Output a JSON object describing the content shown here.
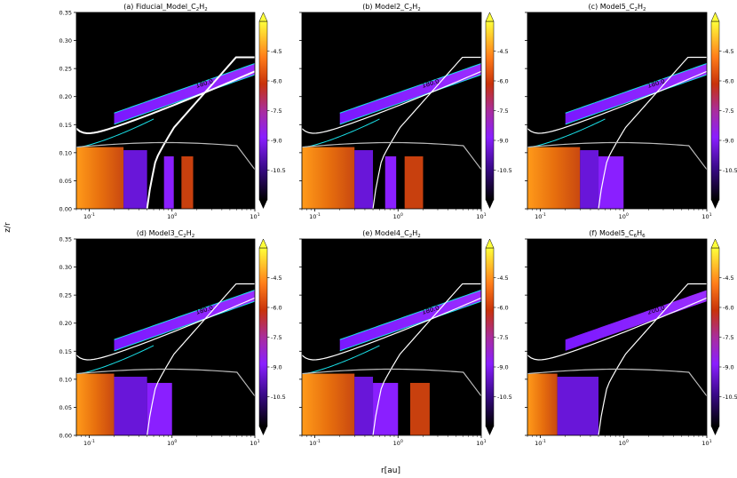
{
  "figure": {
    "ylabel": "z/r",
    "xlabel": "r[au]"
  },
  "chart_data": [
    {
      "type": "heatmap",
      "title_main": "(a) Fiducial_Model_C",
      "title_sub1": "2",
      "title_mid": "H",
      "title_sub2": "2",
      "xscale": "log",
      "xlim": [
        0.07,
        10
      ],
      "ylim": [
        0,
        0.35
      ],
      "yticks": [
        "0.00",
        "0.05",
        "0.10",
        "0.15",
        "0.20",
        "0.25",
        "0.30",
        "0.35"
      ],
      "xticks": [
        "10^-1",
        "10^0",
        "10^1"
      ],
      "colorbar": {
        "ticks": [
          "-4.5",
          "-6.0",
          "-7.5",
          "-9.0",
          "-10.5"
        ],
        "values": [
          -4.5,
          -6.0,
          -7.5,
          -9.0,
          -10.5
        ],
        "range": [
          -12,
          -3
        ]
      },
      "contour_labels": [
        "1000.0",
        "180.0"
      ],
      "inner_band_r_au": [
        0.07,
        0.26
      ],
      "midplane_zr_max": 0.11,
      "outer_patches_r_au": [
        [
          0.8,
          1.05
        ],
        [
          1.3,
          1.8
        ]
      ]
    },
    {
      "type": "heatmap",
      "title_main": "(b) Model2_C",
      "title_sub1": "2",
      "title_mid": "H",
      "title_sub2": "2",
      "xscale": "log",
      "xlim": [
        0.07,
        10
      ],
      "ylim": [
        0,
        0.35
      ],
      "yticks": [],
      "xticks": [
        "10^-1",
        "10^0",
        "10^1"
      ],
      "colorbar": {
        "ticks": [
          "-4.5",
          "-6.0",
          "-7.5",
          "-9.0",
          "-10.5"
        ],
        "values": [
          -4.5,
          -6.0,
          -7.5,
          -9.0,
          -10.5
        ],
        "range": [
          -12,
          -3
        ]
      },
      "contour_labels": [
        "1000.0",
        "180.0"
      ],
      "inner_band_r_au": [
        0.07,
        0.3
      ],
      "midplane_zr_max": 0.11,
      "outer_patches_r_au": [
        [
          0.7,
          0.95
        ],
        [
          1.2,
          2.0
        ]
      ]
    },
    {
      "type": "heatmap",
      "title_main": "(c) Model5_C",
      "title_sub1": "2",
      "title_mid": "H",
      "title_sub2": "2",
      "xscale": "log",
      "xlim": [
        0.07,
        10
      ],
      "ylim": [
        0,
        0.35
      ],
      "yticks": [],
      "xticks": [
        "10^-1",
        "10^0",
        "10^1"
      ],
      "colorbar": {
        "ticks": [
          "-4.5",
          "-6.0",
          "-7.5",
          "-9.0",
          "-10.5"
        ],
        "values": [
          -4.5,
          -6.0,
          -7.5,
          -9.0,
          -10.5
        ],
        "range": [
          -12,
          -3
        ]
      },
      "contour_labels": [
        "1000.0",
        "180.0"
      ],
      "inner_band_r_au": [
        0.07,
        0.3
      ],
      "midplane_zr_max": 0.11,
      "outer_patches_r_au": [
        [
          0.5,
          1.0
        ]
      ]
    },
    {
      "type": "heatmap",
      "title_main": "(d) Model3_C",
      "title_sub1": "2",
      "title_mid": "H",
      "title_sub2": "2",
      "xscale": "log",
      "xlim": [
        0.07,
        10
      ],
      "ylim": [
        0,
        0.35
      ],
      "yticks": [
        "0.00",
        "0.05",
        "0.10",
        "0.15",
        "0.20",
        "0.25",
        "0.30",
        "0.35"
      ],
      "xticks": [
        "10^-1",
        "10^0",
        "10^1"
      ],
      "colorbar": {
        "ticks": [
          "-4.5",
          "-6.0",
          "-7.5",
          "-9.0",
          "-10.5"
        ],
        "values": [
          -4.5,
          -6.0,
          -7.5,
          -9.0,
          -10.5
        ],
        "range": [
          -12,
          -3
        ]
      },
      "contour_labels": [
        "1000.0",
        "180.0"
      ],
      "inner_band_r_au": [
        0.07,
        0.2
      ],
      "midplane_zr_max": 0.11,
      "outer_patches_r_au": [
        [
          0.5,
          1.0
        ]
      ]
    },
    {
      "type": "heatmap",
      "title_main": "(e) Model4_C",
      "title_sub1": "2",
      "title_mid": "H",
      "title_sub2": "2",
      "xscale": "log",
      "xlim": [
        0.07,
        10
      ],
      "ylim": [
        0,
        0.35
      ],
      "yticks": [],
      "xticks": [
        "10^-1",
        "10^0",
        "10^1"
      ],
      "colorbar": {
        "ticks": [
          "-4.5",
          "-6.0",
          "-7.5",
          "-9.0",
          "-10.5"
        ],
        "values": [
          -4.5,
          -6.0,
          -7.5,
          -9.0,
          -10.5
        ],
        "range": [
          -12,
          -3
        ]
      },
      "contour_labels": [
        "1000.0",
        "180.0"
      ],
      "inner_band_r_au": [
        0.07,
        0.3
      ],
      "midplane_zr_max": 0.11,
      "outer_patches_r_au": [
        [
          0.5,
          1.0
        ],
        [
          1.4,
          2.4
        ]
      ]
    },
    {
      "type": "heatmap",
      "title_main": "(f) Model5_C",
      "title_sub1": "6",
      "title_mid": "H",
      "title_sub2": "6",
      "xscale": "log",
      "xlim": [
        0.07,
        10
      ],
      "ylim": [
        0,
        0.35
      ],
      "yticks": [],
      "xticks": [
        "10^-1",
        "10^0",
        "10^1"
      ],
      "colorbar": {
        "ticks": [
          "-4.5",
          "-6.0",
          "-7.5",
          "-9.0",
          "-10.5"
        ],
        "values": [
          -4.5,
          -6.0,
          -7.5,
          -9.0,
          -10.5
        ],
        "range": [
          -12,
          -3
        ]
      },
      "contour_labels": [
        "1000.0",
        "200.0"
      ],
      "inner_band_r_au": [
        0.07,
        0.16
      ],
      "midplane_zr_max": 0.11,
      "outer_patches_r_au": []
    }
  ]
}
